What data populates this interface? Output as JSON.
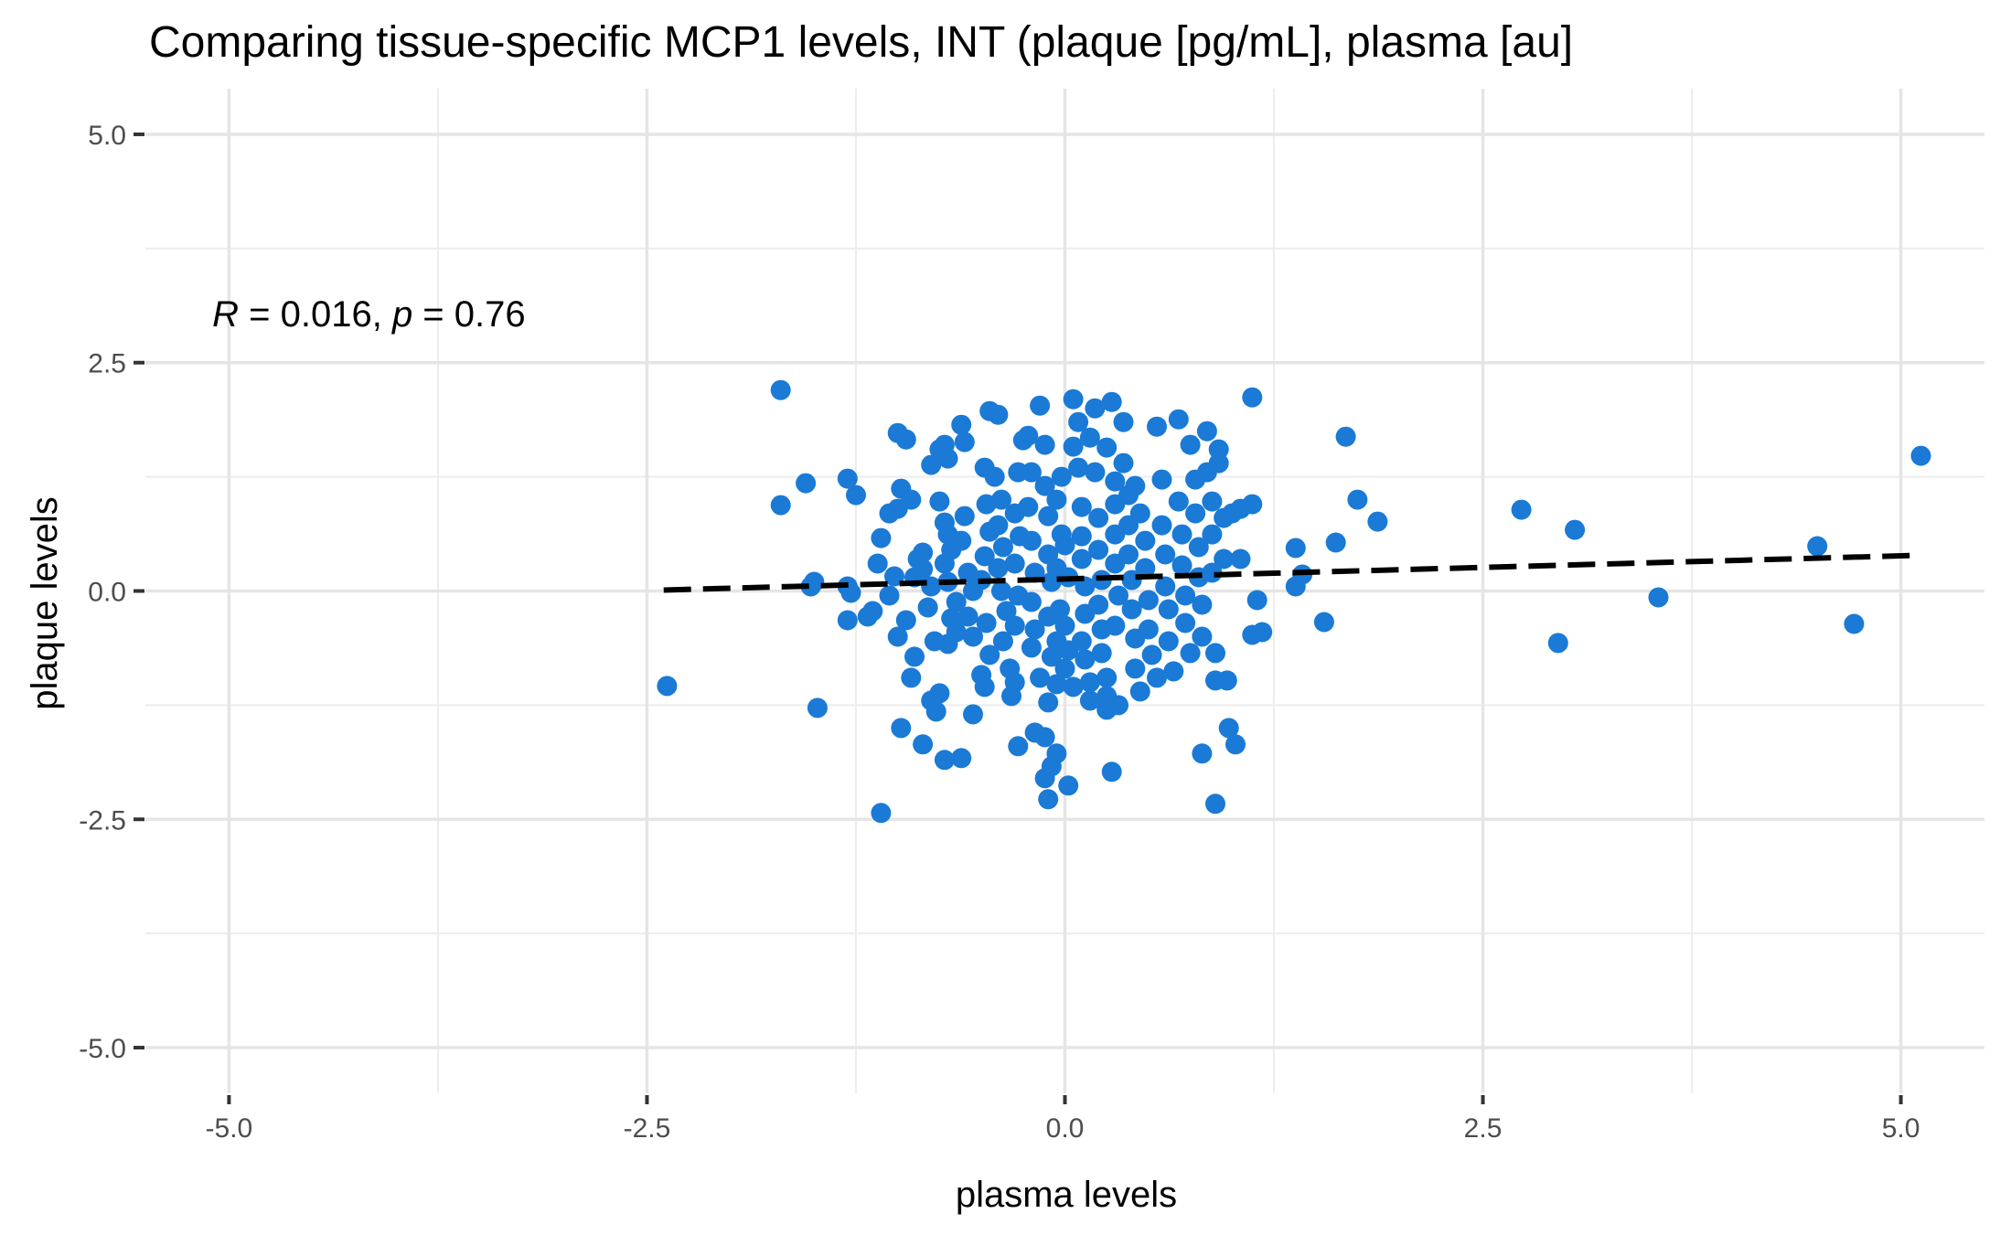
{
  "chart_data": {
    "type": "scatter",
    "title": "Comparing tissue-specific MCP1 levels, INT (plaque [pg/mL], plasma [au]",
    "xlabel": "plasma levels",
    "ylabel": "plaque levels",
    "xlim": [
      -5.5,
      5.5
    ],
    "ylim": [
      -5.5,
      5.5
    ],
    "x_ticks": [
      -5.0,
      -2.5,
      0.0,
      2.5,
      5.0
    ],
    "y_ticks": [
      -5.0,
      -2.5,
      0.0,
      2.5,
      5.0
    ],
    "x_tick_labels": [
      "-5.0",
      "-2.5",
      "0.0",
      "2.5",
      "5.0"
    ],
    "y_tick_labels": [
      "-5.0",
      "-2.5",
      "0.0",
      "2.5",
      "5.0"
    ],
    "grid": true,
    "point_color": "#1a7ad6",
    "annotation": {
      "r_label": "R",
      "r_text": " = 0.016, ",
      "p_label": "p",
      "p_text": " = 0.76",
      "x": -5.1,
      "y": 2.9
    },
    "fit_line": {
      "style": "dashed",
      "color": "#000000",
      "x": [
        -2.4,
        5.1
      ],
      "y": [
        0.01,
        0.39
      ]
    },
    "points": [
      [
        -2.38,
        -1.04
      ],
      [
        -1.7,
        2.2
      ],
      [
        -1.7,
        0.94
      ],
      [
        -1.55,
        1.18
      ],
      [
        -1.5,
        0.1
      ],
      [
        -1.52,
        0.05
      ],
      [
        -1.48,
        -1.28
      ],
      [
        -1.3,
        1.23
      ],
      [
        -1.25,
        1.05
      ],
      [
        -1.3,
        0.05
      ],
      [
        -1.28,
        -0.02
      ],
      [
        -1.3,
        -0.32
      ],
      [
        -1.18,
        -0.28
      ],
      [
        -1.15,
        -0.22
      ],
      [
        -1.12,
        0.3
      ],
      [
        -1.1,
        0.58
      ],
      [
        -1.05,
        0.85
      ],
      [
        -1.0,
        0.9
      ],
      [
        -1.02,
        0.16
      ],
      [
        -1.05,
        -0.05
      ],
      [
        -1.0,
        -0.5
      ],
      [
        -1.1,
        -2.43
      ],
      [
        -0.98,
        -1.5
      ],
      [
        -0.95,
        -0.32
      ],
      [
        -0.9,
        -0.72
      ],
      [
        -0.92,
        -0.95
      ],
      [
        -0.85,
        -1.68
      ],
      [
        -1.0,
        1.73
      ],
      [
        -0.95,
        1.66
      ],
      [
        -0.98,
        1.12
      ],
      [
        -0.92,
        1.0
      ],
      [
        -0.88,
        0.35
      ],
      [
        -0.85,
        0.42
      ],
      [
        -0.9,
        0.15
      ],
      [
        -0.85,
        0.24
      ],
      [
        -0.8,
        0.05
      ],
      [
        -0.82,
        -0.18
      ],
      [
        -0.78,
        -0.55
      ],
      [
        -0.8,
        -1.2
      ],
      [
        -0.77,
        -1.32
      ],
      [
        -0.75,
        -1.12
      ],
      [
        -0.72,
        -1.85
      ],
      [
        -0.62,
        -1.83
      ],
      [
        -0.8,
        1.38
      ],
      [
        -0.75,
        1.55
      ],
      [
        -0.72,
        1.6
      ],
      [
        -0.7,
        1.45
      ],
      [
        -0.75,
        0.98
      ],
      [
        -0.72,
        0.75
      ],
      [
        -0.7,
        0.62
      ],
      [
        -0.68,
        0.45
      ],
      [
        -0.72,
        0.3
      ],
      [
        -0.7,
        0.1
      ],
      [
        -0.65,
        -0.12
      ],
      [
        -0.68,
        -0.3
      ],
      [
        -0.65,
        -0.45
      ],
      [
        -0.7,
        -0.58
      ],
      [
        -0.62,
        1.82
      ],
      [
        -0.6,
        1.63
      ],
      [
        -0.62,
        0.55
      ],
      [
        -0.6,
        0.82
      ],
      [
        -0.58,
        0.2
      ],
      [
        -0.55,
        0.0
      ],
      [
        -0.58,
        -0.28
      ],
      [
        -0.55,
        -0.5
      ],
      [
        -0.55,
        -1.35
      ],
      [
        -0.5,
        -0.92
      ],
      [
        -0.48,
        -1.05
      ],
      [
        -0.45,
        -0.7
      ],
      [
        -0.47,
        -0.35
      ],
      [
        -0.5,
        0.12
      ],
      [
        -0.48,
        0.38
      ],
      [
        -0.45,
        0.65
      ],
      [
        -0.47,
        0.95
      ],
      [
        -0.48,
        1.35
      ],
      [
        -0.45,
        1.97
      ],
      [
        -0.4,
        1.93
      ],
      [
        -0.42,
        1.25
      ],
      [
        -0.38,
        1.0
      ],
      [
        -0.4,
        0.72
      ],
      [
        -0.37,
        0.48
      ],
      [
        -0.4,
        0.25
      ],
      [
        -0.38,
        0.0
      ],
      [
        -0.35,
        -0.22
      ],
      [
        -0.37,
        -0.55
      ],
      [
        -0.33,
        -0.85
      ],
      [
        -0.3,
        -1.0
      ],
      [
        -0.32,
        -1.15
      ],
      [
        -0.28,
        -1.7
      ],
      [
        -0.3,
        -0.38
      ],
      [
        -0.28,
        -0.05
      ],
      [
        -0.3,
        0.3
      ],
      [
        -0.27,
        0.6
      ],
      [
        -0.3,
        0.85
      ],
      [
        -0.28,
        1.3
      ],
      [
        -0.25,
        1.65
      ],
      [
        -0.22,
        1.7
      ],
      [
        -0.2,
        1.3
      ],
      [
        -0.22,
        0.92
      ],
      [
        -0.2,
        0.55
      ],
      [
        -0.18,
        0.2
      ],
      [
        -0.2,
        -0.12
      ],
      [
        -0.18,
        -0.42
      ],
      [
        -0.2,
        -0.62
      ],
      [
        -0.15,
        -0.95
      ],
      [
        -0.18,
        -1.55
      ],
      [
        -0.12,
        -1.6
      ],
      [
        -0.15,
        2.03
      ],
      [
        -0.12,
        1.6
      ],
      [
        -0.12,
        1.15
      ],
      [
        -0.1,
        0.82
      ],
      [
        -0.1,
        0.4
      ],
      [
        -0.08,
        0.1
      ],
      [
        -0.1,
        -0.28
      ],
      [
        -0.08,
        -0.72
      ],
      [
        -0.1,
        -1.22
      ],
      [
        -0.08,
        -1.92
      ],
      [
        -0.12,
        -2.05
      ],
      [
        -0.05,
        -1.78
      ],
      [
        -0.1,
        -2.28
      ],
      [
        -0.05,
        -1.02
      ],
      [
        -0.05,
        -0.55
      ],
      [
        -0.03,
        -0.2
      ],
      [
        -0.05,
        0.25
      ],
      [
        -0.02,
        0.62
      ],
      [
        -0.05,
        1.0
      ],
      [
        -0.02,
        1.25
      ],
      [
        0.0,
        0.5
      ],
      [
        0.02,
        0.15
      ],
      [
        0.0,
        -0.38
      ],
      [
        0.02,
        -0.65
      ],
      [
        0.0,
        -0.85
      ],
      [
        0.05,
        -1.05
      ],
      [
        0.02,
        -2.13
      ],
      [
        0.05,
        2.1
      ],
      [
        0.05,
        1.58
      ],
      [
        0.08,
        1.85
      ],
      [
        0.08,
        1.35
      ],
      [
        0.1,
        0.92
      ],
      [
        0.1,
        0.6
      ],
      [
        0.1,
        0.35
      ],
      [
        0.12,
        0.05
      ],
      [
        0.12,
        -0.25
      ],
      [
        0.1,
        -0.55
      ],
      [
        0.12,
        -0.75
      ],
      [
        0.15,
        -1.0
      ],
      [
        0.15,
        -1.2
      ],
      [
        0.15,
        1.68
      ],
      [
        0.18,
        2.0
      ],
      [
        0.18,
        1.3
      ],
      [
        0.2,
        0.8
      ],
      [
        0.2,
        0.45
      ],
      [
        0.22,
        0.12
      ],
      [
        0.2,
        -0.15
      ],
      [
        0.22,
        -0.42
      ],
      [
        0.22,
        -0.68
      ],
      [
        0.25,
        -0.95
      ],
      [
        0.25,
        -1.15
      ],
      [
        0.25,
        -1.3
      ],
      [
        0.28,
        2.07
      ],
      [
        0.25,
        1.57
      ],
      [
        0.3,
        1.2
      ],
      [
        0.3,
        0.95
      ],
      [
        0.3,
        0.62
      ],
      [
        0.3,
        0.3
      ],
      [
        0.32,
        -0.05
      ],
      [
        0.3,
        -0.38
      ],
      [
        0.28,
        -1.98
      ],
      [
        0.32,
        -1.25
      ],
      [
        0.35,
        1.85
      ],
      [
        0.35,
        1.4
      ],
      [
        0.38,
        1.05
      ],
      [
        0.38,
        0.72
      ],
      [
        0.38,
        0.4
      ],
      [
        0.4,
        0.12
      ],
      [
        0.4,
        -0.2
      ],
      [
        0.42,
        -0.52
      ],
      [
        0.42,
        -0.85
      ],
      [
        0.45,
        -1.1
      ],
      [
        0.42,
        1.15
      ],
      [
        0.45,
        0.85
      ],
      [
        0.48,
        0.55
      ],
      [
        0.48,
        0.25
      ],
      [
        0.5,
        -0.1
      ],
      [
        0.5,
        -0.42
      ],
      [
        0.52,
        -0.7
      ],
      [
        0.55,
        -0.95
      ],
      [
        0.55,
        1.8
      ],
      [
        0.58,
        1.22
      ],
      [
        0.58,
        0.72
      ],
      [
        0.6,
        0.4
      ],
      [
        0.6,
        0.05
      ],
      [
        0.62,
        -0.2
      ],
      [
        0.62,
        -0.55
      ],
      [
        0.65,
        -0.88
      ],
      [
        0.68,
        1.88
      ],
      [
        0.68,
        0.98
      ],
      [
        0.7,
        0.62
      ],
      [
        0.7,
        0.28
      ],
      [
        0.72,
        -0.05
      ],
      [
        0.72,
        -0.35
      ],
      [
        0.75,
        -0.68
      ],
      [
        0.75,
        1.6
      ],
      [
        0.78,
        1.22
      ],
      [
        0.78,
        0.85
      ],
      [
        0.8,
        0.48
      ],
      [
        0.8,
        0.15
      ],
      [
        0.82,
        -0.15
      ],
      [
        0.82,
        -0.5
      ],
      [
        0.82,
        -1.78
      ],
      [
        0.85,
        1.75
      ],
      [
        0.85,
        1.3
      ],
      [
        0.88,
        0.98
      ],
      [
        0.88,
        0.62
      ],
      [
        0.88,
        0.2
      ],
      [
        0.9,
        -0.68
      ],
      [
        0.9,
        -0.98
      ],
      [
        0.9,
        -2.33
      ],
      [
        0.92,
        1.55
      ],
      [
        0.92,
        1.4
      ],
      [
        0.95,
        0.8
      ],
      [
        0.95,
        0.35
      ],
      [
        0.97,
        -0.98
      ],
      [
        0.98,
        -1.5
      ],
      [
        1.02,
        -1.68
      ],
      [
        1.0,
        0.85
      ],
      [
        1.05,
        0.9
      ],
      [
        1.05,
        0.35
      ],
      [
        1.12,
        2.12
      ],
      [
        1.12,
        0.95
      ],
      [
        1.12,
        -0.48
      ],
      [
        1.15,
        -0.1
      ],
      [
        1.18,
        -0.45
      ],
      [
        1.38,
        0.05
      ],
      [
        1.38,
        0.47
      ],
      [
        1.42,
        0.18
      ],
      [
        1.55,
        -0.34
      ],
      [
        1.62,
        0.53
      ],
      [
        1.68,
        1.69
      ],
      [
        1.75,
        1.0
      ],
      [
        1.87,
        0.76
      ],
      [
        2.73,
        0.89
      ],
      [
        2.95,
        -0.57
      ],
      [
        3.05,
        0.67
      ],
      [
        3.55,
        -0.07
      ],
      [
        4.5,
        0.49
      ],
      [
        4.72,
        -0.36
      ],
      [
        5.12,
        1.48
      ]
    ]
  }
}
